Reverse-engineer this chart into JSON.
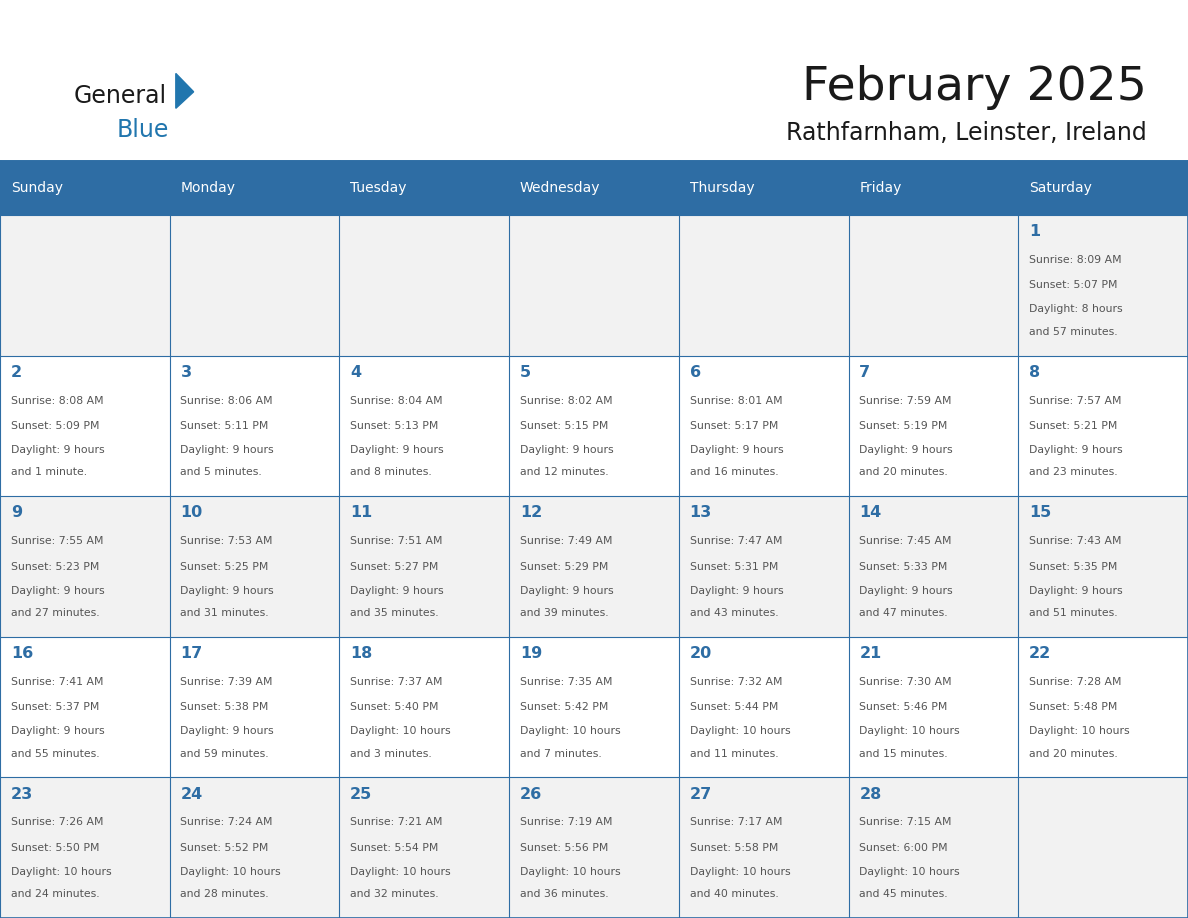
{
  "title": "February 2025",
  "subtitle": "Rathfarnham, Leinster, Ireland",
  "header_bg": "#2E6DA4",
  "header_text": "#FFFFFF",
  "cell_bg_odd": "#F2F2F2",
  "cell_bg_even": "#FFFFFF",
  "border_color": "#2E6DA4",
  "text_color": "#555555",
  "day_num_color": "#2E6DA4",
  "day_headers": [
    "Sunday",
    "Monday",
    "Tuesday",
    "Wednesday",
    "Thursday",
    "Friday",
    "Saturday"
  ],
  "days": [
    {
      "day": 1,
      "col": 6,
      "row": 0,
      "sunrise": "8:09 AM",
      "sunset": "5:07 PM",
      "daylight_h": "8 hours",
      "daylight_m": "57 minutes."
    },
    {
      "day": 2,
      "col": 0,
      "row": 1,
      "sunrise": "8:08 AM",
      "sunset": "5:09 PM",
      "daylight_h": "9 hours",
      "daylight_m": "1 minute."
    },
    {
      "day": 3,
      "col": 1,
      "row": 1,
      "sunrise": "8:06 AM",
      "sunset": "5:11 PM",
      "daylight_h": "9 hours",
      "daylight_m": "5 minutes."
    },
    {
      "day": 4,
      "col": 2,
      "row": 1,
      "sunrise": "8:04 AM",
      "sunset": "5:13 PM",
      "daylight_h": "9 hours",
      "daylight_m": "8 minutes."
    },
    {
      "day": 5,
      "col": 3,
      "row": 1,
      "sunrise": "8:02 AM",
      "sunset": "5:15 PM",
      "daylight_h": "9 hours",
      "daylight_m": "12 minutes."
    },
    {
      "day": 6,
      "col": 4,
      "row": 1,
      "sunrise": "8:01 AM",
      "sunset": "5:17 PM",
      "daylight_h": "9 hours",
      "daylight_m": "16 minutes."
    },
    {
      "day": 7,
      "col": 5,
      "row": 1,
      "sunrise": "7:59 AM",
      "sunset": "5:19 PM",
      "daylight_h": "9 hours",
      "daylight_m": "20 minutes."
    },
    {
      "day": 8,
      "col": 6,
      "row": 1,
      "sunrise": "7:57 AM",
      "sunset": "5:21 PM",
      "daylight_h": "9 hours",
      "daylight_m": "23 minutes."
    },
    {
      "day": 9,
      "col": 0,
      "row": 2,
      "sunrise": "7:55 AM",
      "sunset": "5:23 PM",
      "daylight_h": "9 hours",
      "daylight_m": "27 minutes."
    },
    {
      "day": 10,
      "col": 1,
      "row": 2,
      "sunrise": "7:53 AM",
      "sunset": "5:25 PM",
      "daylight_h": "9 hours",
      "daylight_m": "31 minutes."
    },
    {
      "day": 11,
      "col": 2,
      "row": 2,
      "sunrise": "7:51 AM",
      "sunset": "5:27 PM",
      "daylight_h": "9 hours",
      "daylight_m": "35 minutes."
    },
    {
      "day": 12,
      "col": 3,
      "row": 2,
      "sunrise": "7:49 AM",
      "sunset": "5:29 PM",
      "daylight_h": "9 hours",
      "daylight_m": "39 minutes."
    },
    {
      "day": 13,
      "col": 4,
      "row": 2,
      "sunrise": "7:47 AM",
      "sunset": "5:31 PM",
      "daylight_h": "9 hours",
      "daylight_m": "43 minutes."
    },
    {
      "day": 14,
      "col": 5,
      "row": 2,
      "sunrise": "7:45 AM",
      "sunset": "5:33 PM",
      "daylight_h": "9 hours",
      "daylight_m": "47 minutes."
    },
    {
      "day": 15,
      "col": 6,
      "row": 2,
      "sunrise": "7:43 AM",
      "sunset": "5:35 PM",
      "daylight_h": "9 hours",
      "daylight_m": "51 minutes."
    },
    {
      "day": 16,
      "col": 0,
      "row": 3,
      "sunrise": "7:41 AM",
      "sunset": "5:37 PM",
      "daylight_h": "9 hours",
      "daylight_m": "55 minutes."
    },
    {
      "day": 17,
      "col": 1,
      "row": 3,
      "sunrise": "7:39 AM",
      "sunset": "5:38 PM",
      "daylight_h": "9 hours",
      "daylight_m": "59 minutes."
    },
    {
      "day": 18,
      "col": 2,
      "row": 3,
      "sunrise": "7:37 AM",
      "sunset": "5:40 PM",
      "daylight_h": "10 hours",
      "daylight_m": "3 minutes."
    },
    {
      "day": 19,
      "col": 3,
      "row": 3,
      "sunrise": "7:35 AM",
      "sunset": "5:42 PM",
      "daylight_h": "10 hours",
      "daylight_m": "7 minutes."
    },
    {
      "day": 20,
      "col": 4,
      "row": 3,
      "sunrise": "7:32 AM",
      "sunset": "5:44 PM",
      "daylight_h": "10 hours",
      "daylight_m": "11 minutes."
    },
    {
      "day": 21,
      "col": 5,
      "row": 3,
      "sunrise": "7:30 AM",
      "sunset": "5:46 PM",
      "daylight_h": "10 hours",
      "daylight_m": "15 minutes."
    },
    {
      "day": 22,
      "col": 6,
      "row": 3,
      "sunrise": "7:28 AM",
      "sunset": "5:48 PM",
      "daylight_h": "10 hours",
      "daylight_m": "20 minutes."
    },
    {
      "day": 23,
      "col": 0,
      "row": 4,
      "sunrise": "7:26 AM",
      "sunset": "5:50 PM",
      "daylight_h": "10 hours",
      "daylight_m": "24 minutes."
    },
    {
      "day": 24,
      "col": 1,
      "row": 4,
      "sunrise": "7:24 AM",
      "sunset": "5:52 PM",
      "daylight_h": "10 hours",
      "daylight_m": "28 minutes."
    },
    {
      "day": 25,
      "col": 2,
      "row": 4,
      "sunrise": "7:21 AM",
      "sunset": "5:54 PM",
      "daylight_h": "10 hours",
      "daylight_m": "32 minutes."
    },
    {
      "day": 26,
      "col": 3,
      "row": 4,
      "sunrise": "7:19 AM",
      "sunset": "5:56 PM",
      "daylight_h": "10 hours",
      "daylight_m": "36 minutes."
    },
    {
      "day": 27,
      "col": 4,
      "row": 4,
      "sunrise": "7:17 AM",
      "sunset": "5:58 PM",
      "daylight_h": "10 hours",
      "daylight_m": "40 minutes."
    },
    {
      "day": 28,
      "col": 5,
      "row": 4,
      "sunrise": "7:15 AM",
      "sunset": "6:00 PM",
      "daylight_h": "10 hours",
      "daylight_m": "45 minutes."
    }
  ],
  "num_rows": 5,
  "num_cols": 7,
  "logo_color_general": "#1a1a1a",
  "logo_color_blue": "#2176AE",
  "logo_triangle_color": "#2176AE"
}
